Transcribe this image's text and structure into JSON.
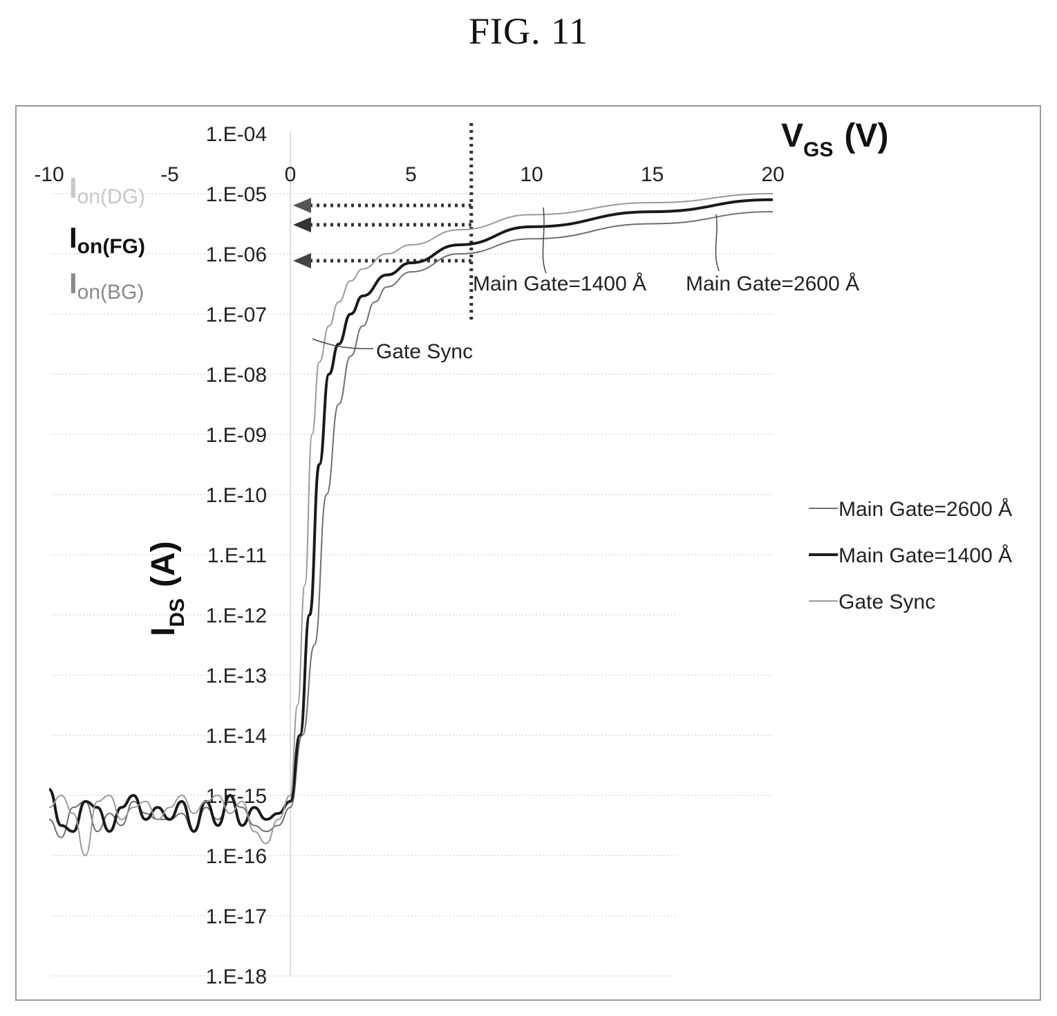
{
  "figure": {
    "title": "FIG. 11"
  },
  "chart_data": {
    "type": "line",
    "title": "FIG. 11",
    "xlabel": {
      "main": "V",
      "sub": "GS",
      "unit": "(V)"
    },
    "ylabel": {
      "main": "I",
      "sub": "DS",
      "unit": "(A)"
    },
    "xlim": [
      -10,
      20
    ],
    "ylim": [
      1e-18,
      0.0001
    ],
    "y_scale": "log",
    "grid": "horizontal dotted",
    "legend_position": "right",
    "x_ticks": [
      "-10",
      "-5",
      "0",
      "5",
      "10",
      "15",
      "20"
    ],
    "x_tick_values": [
      -10,
      -5,
      0,
      5,
      10,
      15,
      20
    ],
    "y_ticks": [
      "1.E-04",
      "1.E-05",
      "1.E-06",
      "1.E-07",
      "1.E-08",
      "1.E-09",
      "1.E-10",
      "1.E-11",
      "1.E-12",
      "1.E-13",
      "1.E-14",
      "1.E-15",
      "1.E-16",
      "1.E-17",
      "1.E-18"
    ],
    "y_tick_exponents": [
      -4,
      -5,
      -6,
      -7,
      -8,
      -9,
      -10,
      -11,
      -12,
      -13,
      -14,
      -15,
      -16,
      -17,
      -18
    ],
    "series": [
      {
        "name": "Main Gate=2600 Å",
        "color": "#6f6f6f",
        "weight": "thin",
        "points": [
          [
            -10,
            -15.4
          ],
          [
            -9.5,
            -15.7
          ],
          [
            -9,
            -15.2
          ],
          [
            -8.5,
            -15.1
          ],
          [
            -8,
            -15.6
          ],
          [
            -7.5,
            -15.3
          ],
          [
            -7,
            -15.5
          ],
          [
            -6.5,
            -15.1
          ],
          [
            -6,
            -15.3
          ],
          [
            -5.5,
            -15.4
          ],
          [
            -5,
            -15.4
          ],
          [
            -4.5,
            -15.3
          ],
          [
            -4,
            -15.6
          ],
          [
            -3.5,
            -15.2
          ],
          [
            -3,
            -15.4
          ],
          [
            -2.5,
            -15.1
          ],
          [
            -2,
            -15.2
          ],
          [
            -1.5,
            -15.5
          ],
          [
            -1,
            -15.6
          ],
          [
            -0.5,
            -15.5
          ],
          [
            0,
            -15.2
          ],
          [
            0.5,
            -14
          ],
          [
            1,
            -12.5
          ],
          [
            1.5,
            -10
          ],
          [
            2,
            -8.5
          ],
          [
            2.5,
            -7.7
          ],
          [
            3,
            -7.2
          ],
          [
            3.5,
            -6.8
          ],
          [
            4,
            -6.55
          ],
          [
            5,
            -6.3
          ],
          [
            7,
            -6
          ],
          [
            10,
            -5.75
          ],
          [
            15,
            -5.5
          ],
          [
            20,
            -5.3
          ]
        ]
      },
      {
        "name": "Main Gate=1400 Å",
        "color": "#1a1a1a",
        "weight": "thick",
        "points": [
          [
            -10,
            -14.9
          ],
          [
            -9.5,
            -15.5
          ],
          [
            -9,
            -15.6
          ],
          [
            -8.5,
            -15.1
          ],
          [
            -8,
            -15.2
          ],
          [
            -7.5,
            -15.6
          ],
          [
            -7,
            -15.2
          ],
          [
            -6.5,
            -15.0
          ],
          [
            -6,
            -15.4
          ],
          [
            -5.5,
            -15.2
          ],
          [
            -5,
            -15.4
          ],
          [
            -4.5,
            -15.1
          ],
          [
            -4,
            -15.6
          ],
          [
            -3.5,
            -15.1
          ],
          [
            -3,
            -15.5
          ],
          [
            -2.5,
            -15.0
          ],
          [
            -2,
            -15.5
          ],
          [
            -1.5,
            -15.2
          ],
          [
            -1,
            -15.4
          ],
          [
            -0.5,
            -15.3
          ],
          [
            0,
            -15.1
          ],
          [
            0.4,
            -14
          ],
          [
            0.8,
            -12
          ],
          [
            1.2,
            -9.5
          ],
          [
            1.6,
            -8
          ],
          [
            2,
            -7.5
          ],
          [
            2.5,
            -7
          ],
          [
            3,
            -6.7
          ],
          [
            4,
            -6.35
          ],
          [
            5,
            -6.15
          ],
          [
            7,
            -5.85
          ],
          [
            10,
            -5.55
          ],
          [
            15,
            -5.3
          ],
          [
            20,
            -5.1
          ]
        ]
      },
      {
        "name": "Gate Sync",
        "color": "#9a9a9a",
        "weight": "thin",
        "points": [
          [
            -10,
            -15.2
          ],
          [
            -9.5,
            -15.0
          ],
          [
            -9,
            -15.3
          ],
          [
            -8.5,
            -16.0
          ],
          [
            -8,
            -15.1
          ],
          [
            -7.5,
            -15.0
          ],
          [
            -7,
            -15.4
          ],
          [
            -6.5,
            -15.2
          ],
          [
            -6,
            -15.1
          ],
          [
            -5.5,
            -15.4
          ],
          [
            -5,
            -15.2
          ],
          [
            -4.5,
            -15.0
          ],
          [
            -4,
            -15.3
          ],
          [
            -3.5,
            -15.1
          ],
          [
            -3,
            -15.0
          ],
          [
            -2.5,
            -15.3
          ],
          [
            -2,
            -15.1
          ],
          [
            -1.5,
            -15.6
          ],
          [
            -1,
            -15.8
          ],
          [
            -0.5,
            -15.4
          ],
          [
            0,
            -15.0
          ],
          [
            0.3,
            -13.5
          ],
          [
            0.6,
            -11.5
          ],
          [
            0.9,
            -9
          ],
          [
            1.2,
            -7.8
          ],
          [
            1.6,
            -7.2
          ],
          [
            2,
            -6.8
          ],
          [
            2.5,
            -6.45
          ],
          [
            3,
            -6.25
          ],
          [
            4,
            -6.0
          ],
          [
            5,
            -5.85
          ],
          [
            7,
            -5.6
          ],
          [
            10,
            -5.35
          ],
          [
            15,
            -5.15
          ],
          [
            20,
            -5.0
          ]
        ]
      }
    ],
    "annotations": {
      "on_current_labels": [
        {
          "main": "I",
          "sub": "on(DG)"
        },
        {
          "main": "I",
          "sub": "on(FG)"
        },
        {
          "main": "I",
          "sub": "on(BG)"
        }
      ],
      "reference_vgs": 7.5,
      "curve_labels": [
        "Gate Sync",
        "Main Gate=1400 Å",
        "Main Gate=2600 Å"
      ]
    }
  }
}
